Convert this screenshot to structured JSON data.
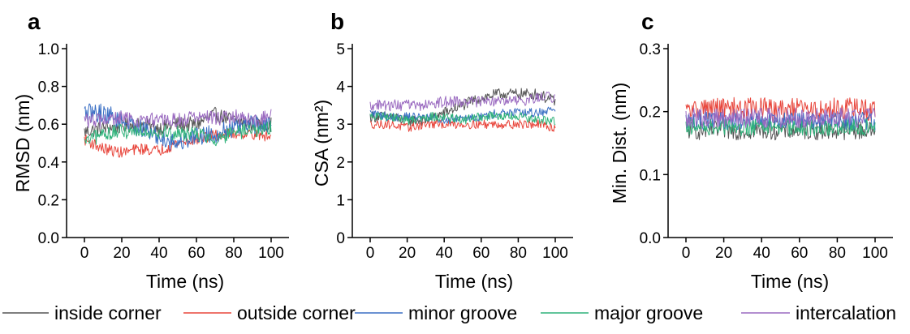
{
  "legend": [
    {
      "label": "inside corner",
      "color": "#555555"
    },
    {
      "label": "outside corner",
      "color": "#e8463c"
    },
    {
      "label": "minor groove",
      "color": "#3a6fc4"
    },
    {
      "label": "major groove",
      "color": "#2fb27a"
    },
    {
      "label": "intercalation",
      "color": "#9a6ac0"
    }
  ],
  "chart_data": [
    {
      "panel": "a",
      "type": "line",
      "xlabel": "Time (ns)",
      "ylabel": "RMSD (nm)",
      "xlim": [
        0,
        100
      ],
      "ylim": [
        0.0,
        1.0
      ],
      "xticks": [
        "0",
        "20",
        "40",
        "60",
        "80",
        "100"
      ],
      "yticks": [
        "0.0",
        "0.2",
        "0.4",
        "0.6",
        "0.8",
        "1.0"
      ],
      "x": [
        0,
        10,
        20,
        30,
        40,
        50,
        60,
        70,
        80,
        90,
        100
      ],
      "series": [
        {
          "name": "inside corner",
          "values": [
            0.56,
            0.58,
            0.59,
            0.6,
            0.58,
            0.6,
            0.6,
            0.65,
            0.62,
            0.6,
            0.6
          ],
          "noise": 0.04
        },
        {
          "name": "outside corner",
          "values": [
            0.52,
            0.47,
            0.45,
            0.47,
            0.46,
            0.5,
            0.52,
            0.54,
            0.55,
            0.55,
            0.53
          ],
          "noise": 0.03
        },
        {
          "name": "minor groove",
          "values": [
            0.66,
            0.66,
            0.62,
            0.58,
            0.53,
            0.5,
            0.54,
            0.55,
            0.58,
            0.6,
            0.6
          ],
          "noise": 0.05
        },
        {
          "name": "major groove",
          "values": [
            0.5,
            0.55,
            0.56,
            0.57,
            0.56,
            0.55,
            0.55,
            0.52,
            0.55,
            0.57,
            0.58
          ],
          "noise": 0.04
        },
        {
          "name": "intercalation",
          "values": [
            0.62,
            0.62,
            0.63,
            0.62,
            0.62,
            0.62,
            0.64,
            0.63,
            0.64,
            0.62,
            0.64
          ],
          "noise": 0.04
        }
      ]
    },
    {
      "panel": "b",
      "type": "line",
      "xlabel": "Time (ns)",
      "ylabel": "CSA (nm²)",
      "xlim": [
        0,
        100
      ],
      "ylim": [
        0,
        5
      ],
      "xticks": [
        "0",
        "20",
        "40",
        "60",
        "80",
        "100"
      ],
      "yticks": [
        "0",
        "1",
        "2",
        "3",
        "4",
        "5"
      ],
      "x": [
        0,
        10,
        20,
        30,
        40,
        50,
        60,
        70,
        80,
        90,
        100
      ],
      "series": [
        {
          "name": "inside corner",
          "values": [
            3.2,
            3.2,
            3.1,
            3.1,
            3.3,
            3.5,
            3.7,
            3.8,
            3.8,
            3.8,
            3.6
          ],
          "noise": 0.15
        },
        {
          "name": "outside corner",
          "values": [
            3.0,
            3.0,
            2.9,
            3.0,
            3.0,
            3.0,
            3.0,
            3.0,
            3.0,
            3.0,
            2.9
          ],
          "noise": 0.12
        },
        {
          "name": "minor groove",
          "values": [
            3.3,
            3.2,
            3.2,
            3.2,
            3.1,
            3.2,
            3.2,
            3.3,
            3.3,
            3.3,
            3.4
          ],
          "noise": 0.12
        },
        {
          "name": "major groove",
          "values": [
            3.2,
            3.2,
            3.1,
            3.2,
            3.2,
            3.1,
            3.2,
            3.2,
            3.2,
            3.1,
            3.1
          ],
          "noise": 0.12
        },
        {
          "name": "intercalation",
          "values": [
            3.5,
            3.5,
            3.5,
            3.5,
            3.6,
            3.6,
            3.6,
            3.6,
            3.6,
            3.7,
            3.7
          ],
          "noise": 0.15
        }
      ]
    },
    {
      "panel": "c",
      "type": "line",
      "xlabel": "Time (ns)",
      "ylabel": "Min. Dist. (nm)",
      "xlim": [
        0,
        100
      ],
      "ylim": [
        0.0,
        0.3
      ],
      "xticks": [
        "0",
        "20",
        "40",
        "60",
        "80",
        "100"
      ],
      "yticks": [
        "0.0",
        "0.1",
        "0.2",
        "0.3"
      ],
      "x": [
        0,
        10,
        20,
        30,
        40,
        50,
        60,
        70,
        80,
        90,
        100
      ],
      "series": [
        {
          "name": "inside corner",
          "values": [
            0.17,
            0.17,
            0.17,
            0.17,
            0.17,
            0.17,
            0.17,
            0.17,
            0.17,
            0.17,
            0.17
          ],
          "noise": 0.015
        },
        {
          "name": "outside corner",
          "values": [
            0.2,
            0.205,
            0.205,
            0.205,
            0.205,
            0.2,
            0.205,
            0.2,
            0.205,
            0.205,
            0.2
          ],
          "noise": 0.018
        },
        {
          "name": "minor groove",
          "values": [
            0.185,
            0.185,
            0.185,
            0.185,
            0.185,
            0.185,
            0.185,
            0.185,
            0.185,
            0.185,
            0.185
          ],
          "noise": 0.015
        },
        {
          "name": "major groove",
          "values": [
            0.175,
            0.175,
            0.175,
            0.175,
            0.175,
            0.175,
            0.175,
            0.175,
            0.175,
            0.175,
            0.175
          ],
          "noise": 0.014
        },
        {
          "name": "intercalation",
          "values": [
            0.19,
            0.19,
            0.19,
            0.19,
            0.19,
            0.19,
            0.19,
            0.19,
            0.19,
            0.19,
            0.19
          ],
          "noise": 0.016
        }
      ]
    }
  ]
}
